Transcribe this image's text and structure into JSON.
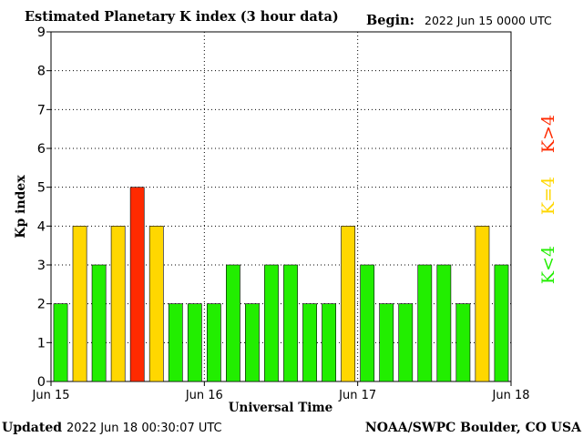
{
  "header": {
    "title": "Estimated Planetary K index (3 hour data)",
    "begin_label": "Begin:",
    "begin_value": "2022 Jun 15 0000 UTC"
  },
  "footer": {
    "updated_label": "Updated",
    "updated_value": "2022 Jun 18 00:30:07 UTC",
    "source": "NOAA/SWPC Boulder, CO USA"
  },
  "legend": {
    "low": "K<4",
    "equal": "K=4",
    "high": "K>4"
  },
  "colors": {
    "low": "#22ee00",
    "equal": "#ffd700",
    "high": "#ff2a00",
    "grid": "#000000",
    "text": "#000000"
  },
  "chart_data": {
    "type": "bar",
    "title": "Estimated Planetary K index (3 hour data)",
    "xlabel": "Universal Time",
    "ylabel": "Kp index",
    "ylim": [
      0,
      9
    ],
    "yticks": [
      "0",
      "1",
      "2",
      "3",
      "4",
      "5",
      "6",
      "7",
      "8",
      "9"
    ],
    "xticks": [
      "Jun 15",
      "Jun 16",
      "Jun 17",
      "Jun 18"
    ],
    "grid": "dotted, daily vertical lines and integer horizontal lines",
    "interval_hours": 3,
    "values": [
      2,
      4,
      3,
      4,
      5,
      4,
      2,
      2,
      2,
      3,
      2,
      3,
      3,
      2,
      2,
      4,
      3,
      2,
      2,
      3,
      3,
      2,
      4,
      3
    ]
  }
}
